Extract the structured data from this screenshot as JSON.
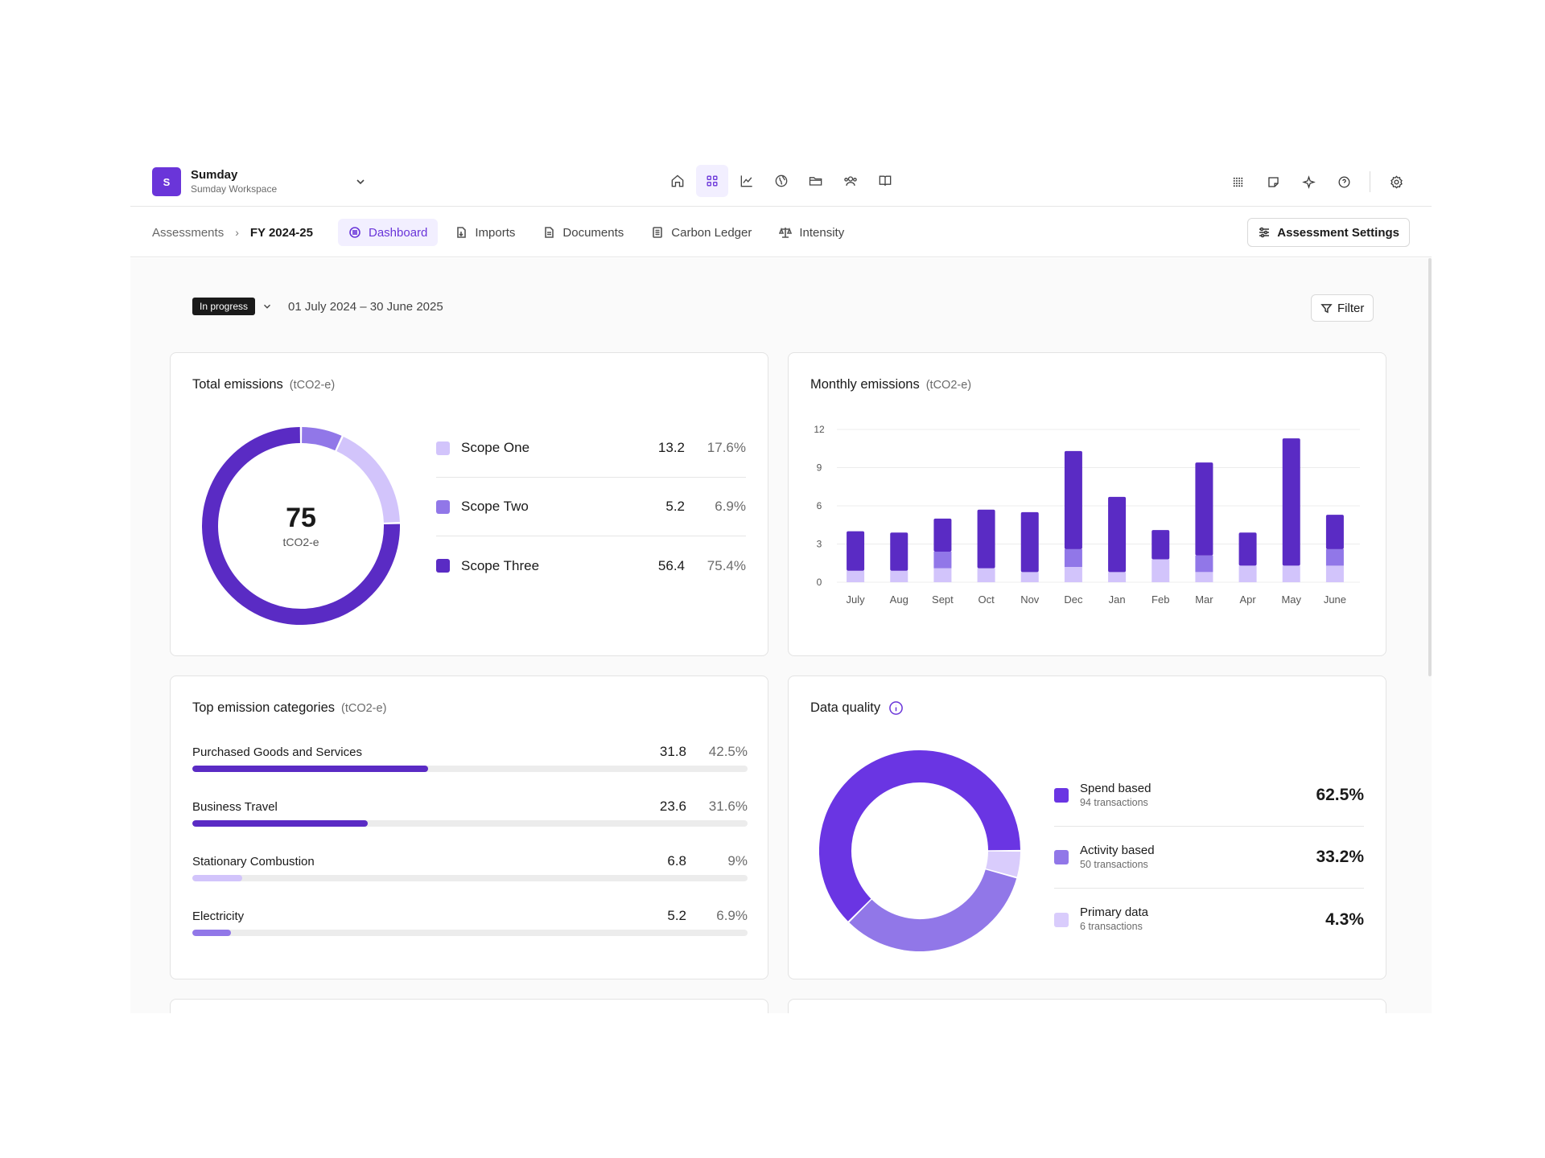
{
  "workspace": {
    "initial": "S",
    "name": "Sumday",
    "subtitle": "Sumday Workspace"
  },
  "top_nav_icons": [
    "home-icon",
    "dashboard-grid-icon",
    "line-chart-icon",
    "globe-icon",
    "folder-icon",
    "users-icon",
    "book-icon"
  ],
  "top_right_icons": [
    "apps-grid-icon",
    "note-icon",
    "sparkle-icon",
    "help-icon",
    "settings-gear-icon"
  ],
  "breadcrumb": {
    "root": "Assessments",
    "current": "FY 2024-25"
  },
  "tabs": [
    {
      "label": "Dashboard",
      "icon": "dashboard-icon",
      "active": true
    },
    {
      "label": "Imports",
      "icon": "import-icon",
      "active": false
    },
    {
      "label": "Documents",
      "icon": "document-icon",
      "active": false
    },
    {
      "label": "Carbon Ledger",
      "icon": "ledger-icon",
      "active": false
    },
    {
      "label": "Intensity",
      "icon": "scale-icon",
      "active": false
    }
  ],
  "assessment_settings_label": "Assessment Settings",
  "status": {
    "badge": "In progress",
    "date_range": "01 July 2024 – 30 June 2025"
  },
  "filter_label": "Filter",
  "colors": {
    "accent": "#6a35d9",
    "scope_one": "#d2c4fb",
    "scope_two": "#9177e8",
    "scope_three": "#5a2bc4",
    "dark": "#5a2bc4"
  },
  "total_emissions": {
    "title": "Total emissions",
    "unit": "(tCO2-e)",
    "total": "75",
    "total_unit": "tCO2-e",
    "rows": [
      {
        "name": "Scope One",
        "value": "13.2",
        "pct": "17.6%",
        "color": "#d2c4fb"
      },
      {
        "name": "Scope Two",
        "value": "5.2",
        "pct": "6.9%",
        "color": "#9177e8"
      },
      {
        "name": "Scope Three",
        "value": "56.4",
        "pct": "75.4%",
        "color": "#5a2bc4"
      }
    ]
  },
  "monthly_emissions": {
    "title": "Monthly emissions",
    "unit": "(tCO2-e)"
  },
  "chart_data": {
    "type": "bar",
    "stacked": true,
    "categories": [
      "July",
      "Aug",
      "Sept",
      "Oct",
      "Nov",
      "Dec",
      "Jan",
      "Feb",
      "Mar",
      "Apr",
      "May",
      "June"
    ],
    "ylim": [
      0,
      12
    ],
    "yticks": [
      0,
      3,
      6,
      9,
      12
    ],
    "grid": true,
    "series": [
      {
        "color": "#d2c4fb",
        "values": [
          0.9,
          0.9,
          1.1,
          1.1,
          0.8,
          1.2,
          0.8,
          1.8,
          0.8,
          1.3,
          1.3,
          1.3
        ]
      },
      {
        "color": "#9177e8",
        "values": [
          0,
          0,
          1.3,
          0,
          0,
          1.4,
          0,
          0,
          1.3,
          0,
          0,
          1.3
        ]
      },
      {
        "color": "#5a2bc4",
        "values": [
          3.1,
          3.0,
          2.6,
          4.6,
          4.7,
          7.7,
          5.9,
          2.3,
          7.3,
          2.6,
          10.0,
          2.7
        ]
      }
    ]
  },
  "top_categories": {
    "title": "Top emission categories",
    "unit": "(tCO2-e)",
    "items": [
      {
        "name": "Purchased Goods and Services",
        "value": "31.8",
        "pct": "42.5%",
        "fraction": 0.425,
        "color": "#5a2bc4"
      },
      {
        "name": "Business Travel",
        "value": "23.6",
        "pct": "31.6%",
        "fraction": 0.316,
        "color": "#5a2bc4"
      },
      {
        "name": "Stationary Combustion",
        "value": "6.8",
        "pct": "9%",
        "fraction": 0.09,
        "color": "#d2c4fb"
      },
      {
        "name": "Electricity",
        "value": "5.2",
        "pct": "6.9%",
        "fraction": 0.069,
        "color": "#9177e8"
      }
    ]
  },
  "data_quality": {
    "title": "Data quality",
    "items": [
      {
        "name": "Spend based",
        "sub": "94 transactions",
        "pct": "62.5%",
        "fraction": 0.625,
        "color": "#6a35e3"
      },
      {
        "name": "Activity based",
        "sub": "50 transactions",
        "pct": "33.2%",
        "fraction": 0.332,
        "color": "#9177e8"
      },
      {
        "name": "Primary data",
        "sub": "6 transactions",
        "pct": "4.3%",
        "fraction": 0.043,
        "color": "#d9ccfc"
      }
    ]
  }
}
